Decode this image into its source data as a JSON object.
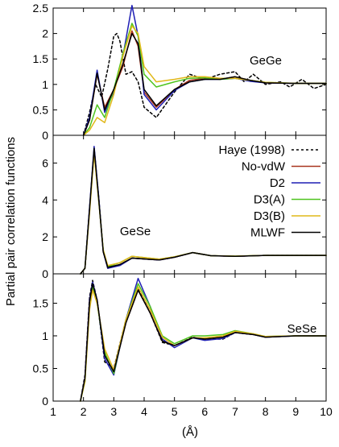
{
  "figure": {
    "ylabel": "Partial pair correlation functions",
    "xlabel": "(Å)"
  },
  "legend": [
    {
      "label": "Haye (1998)",
      "color": "#000000",
      "dash": "dotted"
    },
    {
      "label": "No-vdW",
      "color": "#a8341f",
      "dash": "solid"
    },
    {
      "label": "D2",
      "color": "#1f1fb4",
      "dash": "solid"
    },
    {
      "label": "D3(A)",
      "color": "#4fc41f",
      "dash": "solid"
    },
    {
      "label": "D3(B)",
      "color": "#e1b81a",
      "dash": "solid"
    },
    {
      "label": "MLWF",
      "color": "#000000",
      "dash": "solid"
    }
  ],
  "chart_data": [
    {
      "type": "line",
      "panel_label": "GeGe",
      "xlim": [
        1,
        10
      ],
      "ylim": [
        0,
        2.5
      ],
      "yticks": [
        "0",
        "0.5",
        "1",
        "1.5",
        "2",
        "2.5"
      ],
      "series": [
        {
          "name": "Haye (1998)",
          "color": "#000000",
          "dash": "dotted",
          "x": [
            2.0,
            2.2,
            2.4,
            2.6,
            2.8,
            3.0,
            3.1,
            3.2,
            3.4,
            3.6,
            3.8,
            4.0,
            4.4,
            5.0,
            5.5,
            6.0,
            6.5,
            7.0,
            7.3,
            7.6,
            8.0,
            8.5,
            8.8,
            9.2,
            9.6,
            10.0
          ],
          "y": [
            0,
            0.45,
            1.0,
            0.75,
            1.3,
            1.95,
            2.0,
            1.85,
            1.2,
            1.25,
            1.05,
            0.55,
            0.35,
            0.85,
            1.2,
            1.1,
            1.2,
            1.25,
            1.05,
            1.2,
            1.0,
            1.05,
            0.95,
            1.1,
            0.92,
            1.0
          ]
        },
        {
          "name": "No-vdW",
          "color": "#a8341f",
          "dash": "solid",
          "x": [
            2.0,
            2.2,
            2.45,
            2.7,
            3.0,
            3.3,
            3.6,
            3.8,
            4.0,
            4.4,
            5.0,
            5.5,
            6.0,
            6.5,
            7.0,
            7.5,
            8.0,
            9.0,
            10.0
          ],
          "y": [
            0,
            0.3,
            1.2,
            0.55,
            0.9,
            1.35,
            2.05,
            1.75,
            0.85,
            0.55,
            0.9,
            1.08,
            1.12,
            1.1,
            1.15,
            1.08,
            1.03,
            1.02,
            1.02
          ]
        },
        {
          "name": "D2",
          "color": "#1f1fb4",
          "dash": "solid",
          "x": [
            2.0,
            2.2,
            2.45,
            2.7,
            3.0,
            3.3,
            3.6,
            3.8,
            4.0,
            4.4,
            5.0,
            5.5,
            6.0,
            6.5,
            7.0,
            7.5,
            8.0,
            9.0,
            10.0
          ],
          "y": [
            0,
            0.35,
            1.28,
            0.45,
            0.85,
            1.55,
            2.55,
            1.95,
            0.8,
            0.5,
            0.88,
            1.05,
            1.1,
            1.1,
            1.12,
            1.06,
            1.03,
            1.02,
            1.02
          ]
        },
        {
          "name": "D3(A)",
          "color": "#4fc41f",
          "dash": "solid",
          "x": [
            2.0,
            2.2,
            2.45,
            2.7,
            3.0,
            3.3,
            3.6,
            3.8,
            4.0,
            4.4,
            5.0,
            5.5,
            6.0,
            6.5,
            7.0,
            7.5,
            8.0,
            9.0,
            10.0
          ],
          "y": [
            0,
            0.15,
            0.6,
            0.35,
            0.9,
            1.6,
            2.2,
            1.95,
            1.2,
            0.95,
            1.05,
            1.12,
            1.13,
            1.1,
            1.12,
            1.08,
            1.04,
            1.02,
            1.02
          ]
        },
        {
          "name": "D3(B)",
          "color": "#e1b81a",
          "dash": "solid",
          "x": [
            2.0,
            2.2,
            2.45,
            2.7,
            3.0,
            3.3,
            3.6,
            3.8,
            4.0,
            4.4,
            5.0,
            5.5,
            6.0,
            6.5,
            7.0,
            7.5,
            8.0,
            9.0,
            10.0
          ],
          "y": [
            0,
            0.1,
            0.35,
            0.25,
            0.8,
            1.55,
            2.15,
            2.0,
            1.35,
            1.05,
            1.1,
            1.15,
            1.15,
            1.12,
            1.12,
            1.08,
            1.04,
            1.02,
            1.02
          ]
        },
        {
          "name": "MLWF",
          "color": "#000000",
          "dash": "solid",
          "x": [
            2.0,
            2.2,
            2.45,
            2.7,
            3.0,
            3.3,
            3.6,
            3.8,
            4.0,
            4.4,
            5.0,
            5.5,
            6.0,
            6.5,
            7.0,
            7.5,
            8.0,
            9.0,
            10.0
          ],
          "y": [
            0,
            0.3,
            1.22,
            0.5,
            0.9,
            1.4,
            2.0,
            1.8,
            0.9,
            0.58,
            0.9,
            1.05,
            1.1,
            1.1,
            1.15,
            1.08,
            1.03,
            1.02,
            1.02
          ]
        }
      ]
    },
    {
      "type": "line",
      "panel_label": "GeSe",
      "xlim": [
        1,
        10
      ],
      "ylim": [
        0,
        7.5
      ],
      "yticks": [
        "0",
        "2",
        "4",
        "6"
      ],
      "series": [
        {
          "name": "Haye (1998)",
          "color": "#000000",
          "dash": "dotted",
          "x": [
            1.9,
            2.05,
            2.2,
            2.35,
            2.5,
            2.65,
            2.8,
            3.2,
            3.6,
            4.5,
            5.0,
            5.6,
            6.2,
            7.0,
            8.0,
            9.0,
            10.0
          ],
          "y": [
            0,
            0.3,
            3.5,
            6.8,
            4.2,
            1.2,
            0.3,
            0.5,
            0.85,
            0.75,
            0.9,
            1.15,
            0.98,
            0.95,
            1.0,
            1.0,
            1.0
          ]
        },
        {
          "name": "No-vdW",
          "color": "#a8341f",
          "dash": "solid",
          "x": [
            1.9,
            2.05,
            2.2,
            2.35,
            2.5,
            2.65,
            2.8,
            3.2,
            3.6,
            4.5,
            5.0,
            5.6,
            6.2,
            7.0,
            8.0,
            9.0,
            10.0
          ],
          "y": [
            0,
            0.3,
            3.5,
            6.7,
            4.1,
            1.2,
            0.35,
            0.5,
            0.85,
            0.75,
            0.9,
            1.15,
            0.98,
            0.95,
            1.0,
            1.0,
            1.0
          ]
        },
        {
          "name": "D2",
          "color": "#1f1fb4",
          "dash": "solid",
          "x": [
            1.9,
            2.05,
            2.2,
            2.35,
            2.5,
            2.65,
            2.8,
            3.2,
            3.6,
            4.5,
            5.0,
            5.6,
            6.2,
            7.0,
            8.0,
            9.0,
            10.0
          ],
          "y": [
            0,
            0.3,
            3.6,
            6.9,
            4.2,
            1.2,
            0.3,
            0.45,
            0.85,
            0.75,
            0.9,
            1.15,
            0.98,
            0.95,
            1.0,
            1.0,
            1.0
          ]
        },
        {
          "name": "D3(A)",
          "color": "#4fc41f",
          "dash": "solid",
          "x": [
            1.9,
            2.05,
            2.2,
            2.35,
            2.5,
            2.65,
            2.8,
            3.2,
            3.6,
            4.5,
            5.0,
            5.6,
            6.2,
            7.0,
            8.0,
            9.0,
            10.0
          ],
          "y": [
            0,
            0.3,
            3.4,
            6.6,
            4.0,
            1.3,
            0.4,
            0.6,
            0.95,
            0.8,
            0.92,
            1.15,
            0.98,
            0.96,
            1.0,
            1.0,
            1.0
          ]
        },
        {
          "name": "D3(B)",
          "color": "#e1b81a",
          "dash": "solid",
          "x": [
            1.9,
            2.05,
            2.2,
            2.35,
            2.5,
            2.65,
            2.8,
            3.2,
            3.6,
            4.5,
            5.0,
            5.6,
            6.2,
            7.0,
            8.0,
            9.0,
            10.0
          ],
          "y": [
            0,
            0.3,
            3.3,
            6.5,
            4.0,
            1.3,
            0.45,
            0.6,
            0.95,
            0.8,
            0.92,
            1.15,
            0.98,
            0.96,
            1.0,
            1.0,
            1.0
          ]
        },
        {
          "name": "MLWF",
          "color": "#000000",
          "dash": "solid",
          "x": [
            1.9,
            2.05,
            2.2,
            2.35,
            2.5,
            2.65,
            2.8,
            3.2,
            3.6,
            4.5,
            5.0,
            5.6,
            6.2,
            7.0,
            8.0,
            9.0,
            10.0
          ],
          "y": [
            0,
            0.3,
            3.5,
            6.8,
            4.1,
            1.2,
            0.35,
            0.5,
            0.85,
            0.75,
            0.9,
            1.15,
            0.98,
            0.95,
            1.0,
            1.0,
            1.0
          ]
        }
      ]
    },
    {
      "type": "line",
      "panel_label": "SeSe",
      "xlim": [
        1,
        10
      ],
      "ylim": [
        0,
        1.95
      ],
      "yticks": [
        "0",
        "0.5",
        "1",
        "1.5"
      ],
      "series": [
        {
          "name": "Haye (1998)",
          "color": "#000000",
          "dash": "dotted",
          "x": [
            1.9,
            2.05,
            2.2,
            2.3,
            2.45,
            2.7,
            3.0,
            3.4,
            3.8,
            4.2,
            4.6,
            5.0,
            5.6,
            6.0,
            6.6,
            7.0,
            7.6,
            8.0,
            9.0,
            10.0
          ],
          "y": [
            0,
            0.4,
            1.6,
            1.85,
            1.55,
            0.6,
            0.5,
            1.25,
            1.72,
            1.35,
            0.9,
            0.85,
            0.98,
            0.95,
            0.95,
            1.05,
            1.02,
            0.98,
            1.0,
            1.0
          ]
        },
        {
          "name": "No-vdW",
          "color": "#a8341f",
          "dash": "solid",
          "x": [
            1.9,
            2.05,
            2.2,
            2.3,
            2.45,
            2.7,
            3.0,
            3.4,
            3.8,
            4.2,
            4.6,
            5.0,
            5.6,
            6.0,
            6.6,
            7.0,
            7.6,
            8.0,
            9.0,
            10.0
          ],
          "y": [
            0,
            0.35,
            1.55,
            1.8,
            1.55,
            0.7,
            0.45,
            1.2,
            1.7,
            1.35,
            0.92,
            0.85,
            0.97,
            0.95,
            0.98,
            1.05,
            1.02,
            0.98,
            1.0,
            1.0
          ]
        },
        {
          "name": "D2",
          "color": "#1f1fb4",
          "dash": "solid",
          "x": [
            1.9,
            2.05,
            2.2,
            2.3,
            2.45,
            2.7,
            3.0,
            3.4,
            3.8,
            4.2,
            4.6,
            5.0,
            5.6,
            6.0,
            6.6,
            7.0,
            7.6,
            8.0,
            9.0,
            10.0
          ],
          "y": [
            0,
            0.35,
            1.55,
            1.82,
            1.55,
            0.65,
            0.4,
            1.25,
            1.88,
            1.45,
            0.95,
            0.82,
            0.97,
            0.93,
            0.96,
            1.05,
            1.02,
            0.98,
            1.0,
            1.0
          ]
        },
        {
          "name": "D3(A)",
          "color": "#4fc41f",
          "dash": "solid",
          "x": [
            1.9,
            2.05,
            2.2,
            2.3,
            2.45,
            2.7,
            3.0,
            3.4,
            3.8,
            4.2,
            4.6,
            5.0,
            5.6,
            6.0,
            6.6,
            7.0,
            7.6,
            8.0,
            9.0,
            10.0
          ],
          "y": [
            0,
            0.3,
            1.45,
            1.75,
            1.5,
            0.75,
            0.42,
            1.25,
            1.8,
            1.45,
            1.0,
            0.88,
            1.0,
            1.0,
            1.02,
            1.08,
            1.03,
            0.99,
            1.0,
            1.0
          ]
        },
        {
          "name": "D3(B)",
          "color": "#e1b81a",
          "dash": "solid",
          "x": [
            1.9,
            2.05,
            2.2,
            2.3,
            2.45,
            2.7,
            3.0,
            3.4,
            3.8,
            4.2,
            4.6,
            5.0,
            5.6,
            6.0,
            6.6,
            7.0,
            7.6,
            8.0,
            9.0,
            10.0
          ],
          "y": [
            0,
            0.3,
            1.4,
            1.7,
            1.5,
            0.8,
            0.48,
            1.25,
            1.75,
            1.4,
            0.98,
            0.85,
            0.97,
            0.97,
            1.0,
            1.07,
            1.03,
            0.99,
            1.0,
            1.0
          ]
        },
        {
          "name": "MLWF",
          "color": "#000000",
          "dash": "solid",
          "x": [
            1.9,
            2.05,
            2.2,
            2.3,
            2.45,
            2.7,
            3.0,
            3.4,
            3.8,
            4.2,
            4.6,
            5.0,
            5.6,
            6.0,
            6.6,
            7.0,
            7.6,
            8.0,
            9.0,
            10.0
          ],
          "y": [
            0,
            0.35,
            1.52,
            1.8,
            1.55,
            0.7,
            0.45,
            1.2,
            1.7,
            1.35,
            0.92,
            0.85,
            0.97,
            0.95,
            0.98,
            1.05,
            1.02,
            0.98,
            1.0,
            1.0
          ]
        }
      ]
    }
  ],
  "xticks": [
    "1",
    "2",
    "3",
    "4",
    "5",
    "6",
    "7",
    "8",
    "9",
    "10"
  ]
}
